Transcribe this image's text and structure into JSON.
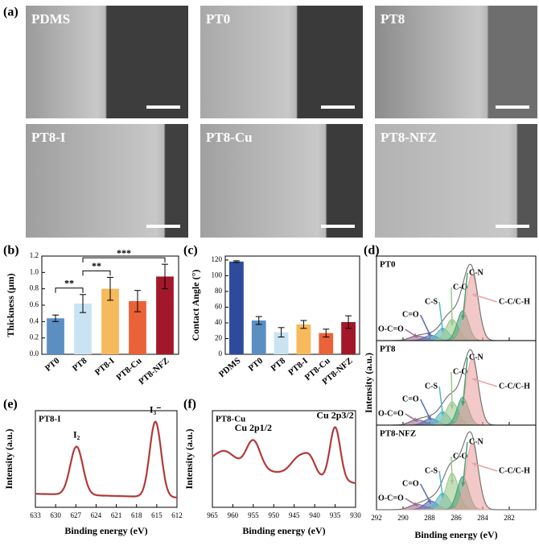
{
  "panel_labels": [
    "(a)",
    "(b)",
    "(c)",
    "(d)",
    "(e)",
    "(f)"
  ],
  "sem_images": [
    {
      "label": "PDMS"
    },
    {
      "label": "PT0"
    },
    {
      "label": "PT8"
    },
    {
      "label": "PT8-I"
    },
    {
      "label": "PT8-Cu"
    },
    {
      "label": "PT8-NFZ"
    }
  ],
  "chart_data": [
    {
      "type": "bar",
      "ylabel": "Thickness (μm)",
      "categories": [
        "PT0",
        "PT8",
        "PT8-I",
        "PT8-Cu",
        "PT8-NFZ"
      ],
      "values": [
        0.44,
        0.62,
        0.8,
        0.65,
        0.95
      ],
      "errors": [
        0.04,
        0.11,
        0.14,
        0.13,
        0.15
      ],
      "colors": [
        "#5b8fc2",
        "#c9e3f2",
        "#f6b95c",
        "#ea6238",
        "#a3172a"
      ],
      "ylim": [
        0,
        1.2
      ],
      "yticks": [
        {
          "value": 0,
          "label": "0.0"
        },
        0.2,
        0.4,
        0.6,
        0.8,
        {
          "value": 1,
          "label": "1.0"
        },
        1.2
      ],
      "significance": [
        {
          "pair": [
            "PT0",
            "PT8"
          ],
          "label": "**"
        },
        {
          "pair": [
            "PT8",
            "PT8-I"
          ],
          "label": "**"
        },
        {
          "pair": [
            "PT8",
            "PT8-NFZ"
          ],
          "label": "***"
        }
      ]
    },
    {
      "type": "bar",
      "ylabel": "Contact Angle (°)",
      "categories": [
        "PDMS",
        "PT0",
        "PT8",
        "PT8-I",
        "PT8-Cu",
        "PT8-NFZ"
      ],
      "values": [
        118,
        43,
        28,
        38,
        27,
        41
      ],
      "errors": [
        1,
        5,
        6,
        5,
        5,
        8
      ],
      "colors": [
        "#2e4b9b",
        "#5b8fc2",
        "#c9e3f2",
        "#f6b95c",
        "#ea6238",
        "#a3172a"
      ],
      "ylim": [
        0,
        125
      ],
      "yticks": [
        0,
        20,
        40,
        60,
        80,
        100,
        120
      ]
    },
    {
      "type": "xps_stack",
      "xlabel": "Binding energy (eV)",
      "ylabel": "Intensity (a.u.)",
      "xlim": [
        292,
        280
      ],
      "xticks": [
        292,
        290,
        288,
        286,
        284,
        282
      ],
      "ylim": [
        0,
        1.2
      ],
      "components": [
        {
          "name": "O-C=O",
          "center": 288.9,
          "fwhm": 1.4,
          "color": "#9c6d8e"
        },
        {
          "name": "C=O",
          "center": 287.9,
          "fwhm": 1.2,
          "color": "#5a6db3"
        },
        {
          "name": "C-S",
          "center": 287.0,
          "fwhm": 1.1,
          "color": "#58b5c4"
        },
        {
          "name": "C-O",
          "center": 286.3,
          "fwhm": 1.1,
          "color": "#9cc98c"
        },
        {
          "name": "C-N",
          "center": 285.5,
          "fwhm": 1.0,
          "color": "#4a9e74"
        },
        {
          "name": "C-C/C-H",
          "center": 284.8,
          "fwhm": 1.1,
          "color": "#eba3a3"
        }
      ],
      "panels": [
        {
          "title": "PT0",
          "heights": [
            0.07,
            0.08,
            0.18,
            0.32,
            0.45,
            1.0
          ]
        },
        {
          "title": "PT8",
          "heights": [
            0.08,
            0.1,
            0.2,
            0.35,
            0.42,
            1.0
          ]
        },
        {
          "title": "PT8-NFZ",
          "heights": [
            0.08,
            0.13,
            0.25,
            0.55,
            0.5,
            1.0
          ]
        }
      ]
    },
    {
      "type": "xps",
      "title": "PT8-I",
      "xlabel": "Binding energy (eV)",
      "ylabel": "Intensity (a.u.)",
      "xlim": [
        633,
        612
      ],
      "xticks": [
        633,
        630,
        627,
        624,
        621,
        618,
        615,
        612
      ],
      "ylim": [
        0,
        1.0
      ],
      "baseline": [
        0.14,
        0.1
      ],
      "color": "#d42020",
      "components": [
        {
          "name": "I₂",
          "center": 626.9,
          "height": 0.5,
          "fwhm": 2.2
        },
        {
          "name": "I₃⁻",
          "center": 615.2,
          "height": 0.78,
          "fwhm": 2.0
        }
      ]
    },
    {
      "type": "xps",
      "title": "PT8-Cu",
      "xlabel": "Binding energy (eV)",
      "ylabel": "Intensity (a.u.)",
      "xlim": [
        965,
        930
      ],
      "xticks": [
        965,
        960,
        955,
        950,
        945,
        940,
        935,
        930
      ],
      "ylim": [
        0,
        1.0
      ],
      "baseline": [
        0.45,
        0.25
      ],
      "color": "#d42020",
      "components": [
        {
          "center": 962,
          "height": 0.15,
          "fwhm": 6
        },
        {
          "name": "Cu 2p1/2",
          "center": 955,
          "height": 0.3,
          "fwhm": 4
        },
        {
          "center": 943.5,
          "height": 0.2,
          "fwhm": 5
        },
        {
          "center": 941,
          "height": 0.12,
          "fwhm": 3
        },
        {
          "name": "Cu 2p3/2",
          "center": 935,
          "height": 0.55,
          "fwhm": 3
        }
      ]
    }
  ]
}
